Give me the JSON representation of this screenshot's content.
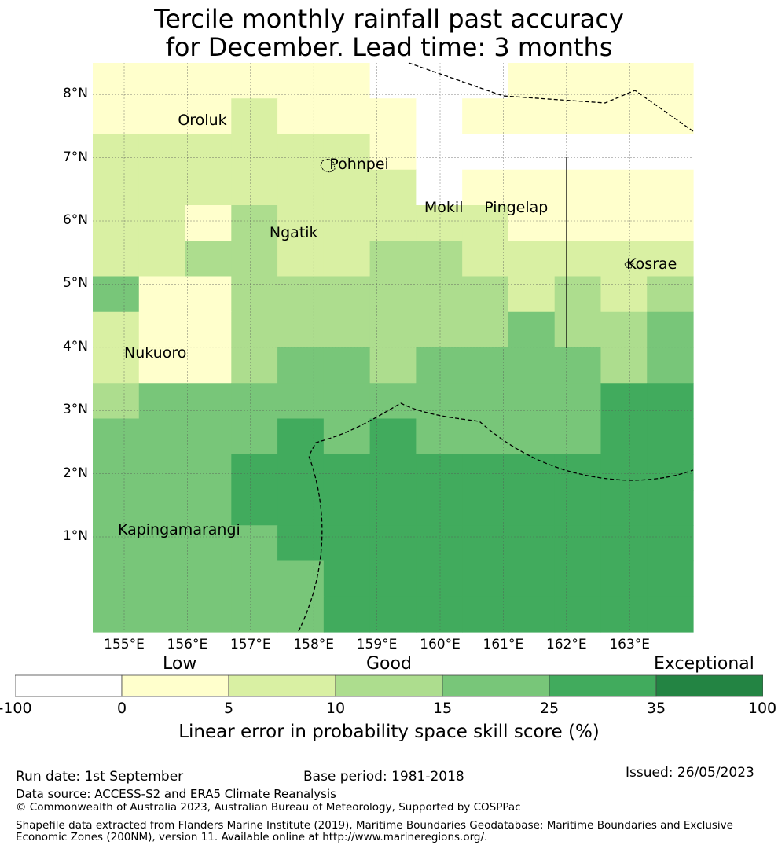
{
  "title_line1": "Tercile monthly rainfall past accuracy",
  "title_line2": "for December. Lead time: 3 months",
  "lat_ticks": [
    "8°N",
    "7°N",
    "6°N",
    "5°N",
    "4°N",
    "3°N",
    "2°N",
    "1°N"
  ],
  "lat_values": [
    8,
    7,
    6,
    5,
    4,
    3,
    2,
    1
  ],
  "lon_ticks": [
    "155°E",
    "156°E",
    "157°E",
    "158°E",
    "159°E",
    "160°E",
    "161°E",
    "162°E",
    "163°E"
  ],
  "lon_values": [
    155,
    156,
    157,
    158,
    159,
    160,
    161,
    162,
    163
  ],
  "places": [
    {
      "name": "Oroluk",
      "lon": 155.85,
      "lat": 7.58
    },
    {
      "name": "Pohnpei",
      "lon": 158.25,
      "lat": 6.88
    },
    {
      "name": "Mokil",
      "lon": 159.75,
      "lat": 6.2
    },
    {
      "name": "Pingelap",
      "lon": 160.7,
      "lat": 6.2
    },
    {
      "name": "Ngatik",
      "lon": 157.3,
      "lat": 5.8
    },
    {
      "name": "Kosrae",
      "lon": 162.95,
      "lat": 5.3
    },
    {
      "name": "Nukuoro",
      "lon": 155.0,
      "lat": 3.9
    },
    {
      "name": "Kapingamarangi",
      "lon": 154.9,
      "lat": 1.1
    }
  ],
  "categories": {
    "low": "Low",
    "good": "Good",
    "exceptional": "Exceptional"
  },
  "colorbar": {
    "title": "Linear error in probability space skill score (%)",
    "ticks": [
      "-100",
      "0",
      "5",
      "10",
      "15",
      "25",
      "35",
      "100"
    ],
    "colors": [
      "#ffffff",
      "#ffffcc",
      "#d9f0a3",
      "#addd8e",
      "#78c679",
      "#41ab5d",
      "#238443"
    ]
  },
  "grid_colors": [
    "#ffffff",
    "#ffffcc",
    "#d9f0a3",
    "#addd8e",
    "#78c679",
    "#41ab5d"
  ],
  "grid_rows": [
    "1111110001111",
    "1112111011111",
    "2222221000000",
    "2222222011111",
    "2213222221111",
    "2233223322222",
    "4113333332323",
    "2113333334334",
    "2113443444434",
    "3444444444455",
    "4444545444455",
    "4445555555555",
    "4445555555555",
    "4444555555555",
    "4444455555555",
    "4444455555555"
  ],
  "footer": {
    "run_date": "Run date: 1st September",
    "base_period": "Base period: 1981-2018",
    "issued": "Issued: 26/05/2023",
    "data_source": "Data source: ACCESS-S2 and ERA5 Climate Reanalysis",
    "copyright": "© Commonwealth of Australia 2023, Australian Bureau of Meteorology, Supported by COSPPac",
    "shapefile": "Shapefile data extracted from Flanders Marine Institute (2019), Maritime Boundaries Geodatabase: Maritime Boundaries and Exclusive Economic Zones (200NM), version 11. Available online at http://www.marineregions.org/."
  }
}
